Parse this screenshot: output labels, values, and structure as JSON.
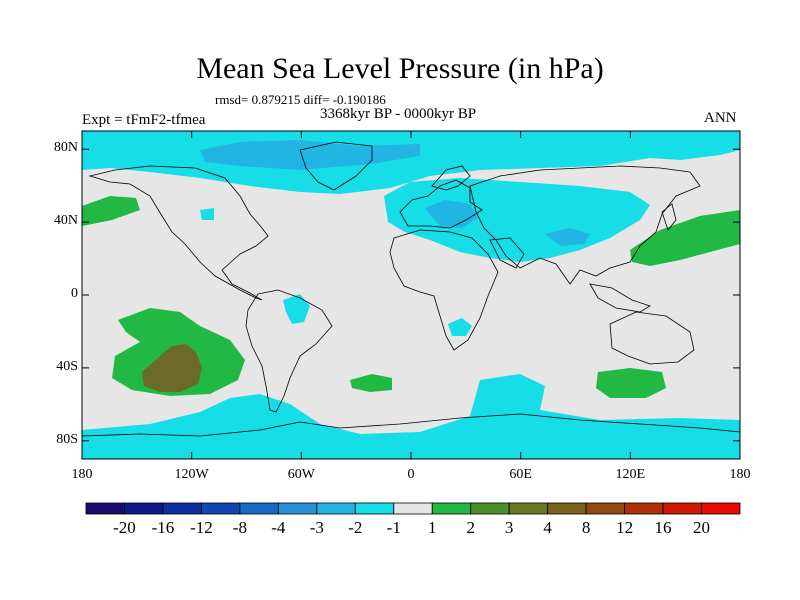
{
  "title": "Mean Sea Level Pressure (in hPa)",
  "stats": "rmsd= 0.879215 diff= -0.190186",
  "period": "3368kyr BP - 0000kyr BP",
  "experiment": "Expt = tFmF2-tfmea",
  "season": "ANN",
  "y_axis": [
    {
      "label": "80N",
      "lat": 80
    },
    {
      "label": "40N",
      "lat": 40
    },
    {
      "label": "0",
      "lat": 0
    },
    {
      "label": "40S",
      "lat": -40
    },
    {
      "label": "80S",
      "lat": -80
    }
  ],
  "x_axis": [
    {
      "label": "180",
      "lon": -180
    },
    {
      "label": "120W",
      "lon": -120
    },
    {
      "label": "60W",
      "lon": -60
    },
    {
      "label": "0",
      "lon": 0
    },
    {
      "label": "60E",
      "lon": 60
    },
    {
      "label": "120E",
      "lon": 120
    },
    {
      "label": "180",
      "lon": 180
    }
  ],
  "colorbar": {
    "labels": [
      "-20",
      "-16",
      "-12",
      "-8",
      "-4",
      "-3",
      "-2",
      "-1",
      "1",
      "2",
      "3",
      "4",
      "8",
      "12",
      "16",
      "20"
    ],
    "colors": [
      "#1a0a6e",
      "#0d1b8a",
      "#0d2fa0",
      "#1147b3",
      "#1a6bc7",
      "#2a90d8",
      "#22b4e2",
      "#17dde6",
      "#e6e6e6",
      "#22b844",
      "#4a8f28",
      "#6b7820",
      "#7a6018",
      "#904a10",
      "#b03008",
      "#d01a04",
      "#e80a00"
    ]
  },
  "map_colors": {
    "background": "#e6e6e6",
    "neg_1": "#17dde6",
    "neg_2": "#22b4e2",
    "pos_1": "#22b844",
    "pos_2": "#4a8f28",
    "pos_3": "#6b6a28",
    "coast": "#000000"
  }
}
